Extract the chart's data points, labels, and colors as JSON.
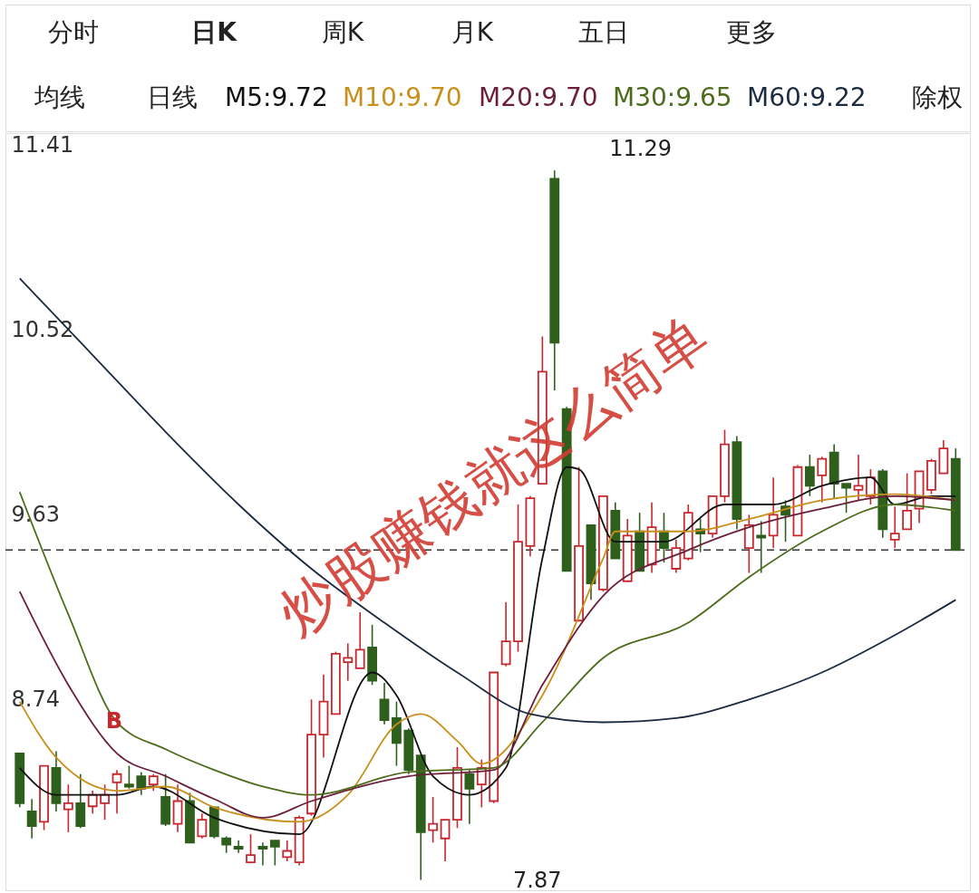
{
  "chart_data": {
    "type": "candlestick",
    "categories": [
      null,
      null,
      null,
      null,
      null,
      null,
      null,
      null,
      null,
      null,
      null,
      null,
      null,
      null,
      null,
      null,
      null,
      null,
      null,
      null,
      null,
      null,
      null,
      null,
      null,
      null,
      null,
      null,
      null,
      null,
      null,
      null,
      null,
      null,
      null,
      null,
      null,
      null,
      null,
      null,
      null,
      null,
      null,
      null,
      null,
      null,
      null,
      null,
      null,
      null,
      null,
      null,
      null,
      null,
      null,
      null,
      null,
      null,
      null,
      null,
      null,
      null,
      null,
      null,
      null,
      null,
      null,
      null,
      null,
      null,
      null,
      null,
      null,
      null,
      null,
      null,
      null,
      null
    ],
    "ohlc": [
      [
        8.48,
        8.48,
        8.22,
        8.24
      ],
      [
        8.2,
        8.26,
        8.07,
        8.13
      ],
      [
        8.15,
        8.42,
        8.11,
        8.42
      ],
      [
        8.41,
        8.49,
        8.2,
        8.24
      ],
      [
        8.21,
        8.33,
        8.1,
        8.24
      ],
      [
        8.24,
        8.38,
        8.12,
        8.13
      ],
      [
        8.225,
        8.3,
        8.19,
        8.28
      ],
      [
        8.24,
        8.33,
        8.16,
        8.28
      ],
      [
        8.34,
        8.4,
        8.19,
        8.38
      ],
      [
        8.33,
        8.42,
        8.31,
        8.32
      ],
      [
        8.37,
        8.39,
        8.28,
        8.31
      ],
      [
        8.33,
        8.38,
        8.3,
        8.37
      ],
      [
        8.27,
        8.38,
        8.13,
        8.14
      ],
      [
        8.14,
        8.33,
        8.1,
        8.25
      ],
      [
        8.25,
        8.29,
        8.05,
        8.05
      ],
      [
        8.08,
        8.19,
        8.07,
        8.16
      ],
      [
        8.22,
        8.22,
        8.07,
        8.08
      ],
      [
        8.07,
        8.08,
        8.0,
        8.04
      ],
      [
        8.03,
        8.06,
        8.0,
        8.02
      ],
      [
        7.955,
        8.09,
        7.95,
        7.99
      ],
      [
        8.03,
        8.05,
        7.94,
        8.02
      ],
      [
        8.06,
        8.06,
        7.94,
        8.03
      ],
      [
        7.98,
        8.06,
        7.96,
        8.01
      ],
      [
        7.955,
        8.18,
        7.94,
        8.17
      ],
      [
        8.19,
        8.74,
        8.18,
        8.57
      ],
      [
        8.57,
        8.86,
        8.46,
        8.73
      ],
      [
        8.67,
        8.97,
        8.67,
        8.96
      ],
      [
        8.92,
        9.01,
        8.83,
        8.94
      ],
      [
        8.89,
        9.16,
        8.89,
        8.98
      ],
      [
        8.99,
        9.1,
        8.81,
        8.83
      ],
      [
        8.74,
        8.82,
        8.62,
        8.64
      ],
      [
        8.65,
        8.73,
        8.42,
        8.53
      ],
      [
        8.59,
        8.6,
        8.38,
        8.4
      ],
      [
        8.47,
        8.47,
        7.87,
        8.1
      ],
      [
        8.11,
        8.27,
        8.05,
        8.14
      ],
      [
        8.07,
        8.16,
        7.96,
        8.16
      ],
      [
        8.16,
        8.51,
        8.12,
        8.41
      ],
      [
        8.38,
        8.4,
        8.14,
        8.31
      ],
      [
        8.33,
        8.45,
        8.22,
        8.41
      ],
      [
        8.25,
        8.87,
        8.24,
        8.87
      ],
      [
        8.91,
        9.21,
        8.9,
        9.02
      ],
      [
        9.02,
        9.68,
        8.97,
        9.5
      ],
      [
        9.48,
        9.72,
        9.43,
        9.71
      ],
      [
        9.78,
        10.49,
        9.78,
        10.32
      ],
      [
        11.25,
        11.29,
        10.23,
        10.46
      ],
      [
        10.14,
        10.15,
        9.36,
        9.36
      ],
      [
        9.12,
        9.86,
        9.12,
        9.48
      ],
      [
        9.58,
        9.58,
        9.22,
        9.3
      ],
      [
        9.27,
        9.72,
        9.26,
        9.72
      ],
      [
        9.65,
        9.69,
        9.42,
        9.42
      ],
      [
        9.31,
        9.61,
        9.31,
        9.53
      ],
      [
        9.55,
        9.64,
        9.36,
        9.36
      ],
      [
        9.39,
        9.69,
        9.35,
        9.57
      ],
      [
        9.55,
        9.64,
        9.4,
        9.47
      ],
      [
        9.37,
        9.51,
        9.35,
        9.47
      ],
      [
        9.42,
        9.68,
        9.41,
        9.64
      ],
      [
        9.56,
        9.61,
        9.45,
        9.54
      ],
      [
        9.54,
        9.72,
        9.52,
        9.72
      ],
      [
        9.72,
        10.04,
        9.69,
        9.97
      ],
      [
        9.98,
        10.01,
        9.56,
        9.61
      ],
      [
        9.47,
        9.63,
        9.35,
        9.58
      ],
      [
        9.53,
        9.6,
        9.35,
        9.52
      ],
      [
        9.53,
        9.81,
        9.47,
        9.63
      ],
      [
        9.67,
        9.7,
        9.5,
        9.63
      ],
      [
        9.53,
        9.87,
        9.53,
        9.86
      ],
      [
        9.86,
        9.92,
        9.72,
        9.77
      ],
      [
        9.82,
        9.91,
        9.69,
        9.9
      ],
      [
        9.93,
        9.97,
        9.71,
        9.78
      ],
      [
        9.78,
        9.78,
        9.64,
        9.76
      ],
      [
        9.75,
        9.92,
        9.7,
        9.77
      ],
      [
        9.72,
        9.85,
        9.68,
        9.81
      ],
      [
        9.84,
        9.85,
        9.52,
        9.56
      ],
      [
        9.51,
        9.67,
        9.47,
        9.54
      ],
      [
        9.56,
        9.83,
        9.56,
        9.65
      ],
      [
        9.66,
        9.84,
        9.59,
        9.84
      ],
      [
        9.75,
        9.9,
        9.73,
        9.89
      ],
      [
        9.83,
        9.99,
        9.83,
        9.95
      ],
      [
        9.9,
        9.95,
        9.46,
        9.46
      ]
    ],
    "series": [
      {
        "name": "M5:9.72",
        "type": "line",
        "color": "#111111",
        "values": [
          8.41,
          null,
          null,
          8.28,
          null,
          null,
          null,
          null,
          8.28,
          null,
          null,
          8.32,
          null,
          null,
          null,
          null,
          8.17,
          null,
          null,
          null,
          null,
          null,
          null,
          8.09,
          null,
          null,
          null,
          null,
          null,
          8.87,
          null,
          8.76,
          null,
          null,
          8.37,
          null,
          null,
          8.28,
          null,
          null,
          8.41,
          null,
          null,
          9.42,
          null,
          9.86,
          9.85,
          null,
          null,
          9.5,
          null,
          null,
          null,
          9.5,
          null,
          null,
          null,
          null,
          9.68,
          null,
          null,
          null,
          9.68,
          null,
          null,
          null,
          9.77,
          null,
          null,
          null,
          9.81,
          null,
          9.68,
          null,
          null,
          9.72,
          null,
          9.72
        ]
      },
      {
        "name": "M10:9.70",
        "type": "line",
        "color": "#c8901a",
        "values": [
          8.73,
          null,
          null,
          8.46,
          null,
          null,
          null,
          null,
          8.3,
          null,
          null,
          null,
          8.32,
          null,
          null,
          null,
          8.22,
          null,
          null,
          null,
          null,
          null,
          null,
          8.15,
          null,
          null,
          null,
          8.28,
          null,
          null,
          null,
          8.62,
          null,
          8.67,
          null,
          null,
          8.54,
          null,
          8.43,
          null,
          null,
          null,
          null,
          8.76,
          null,
          null,
          null,
          null,
          9.42,
          9.55,
          null,
          null,
          null,
          null,
          null,
          9.55,
          null,
          null,
          null,
          null,
          9.61,
          null,
          null,
          null,
          null,
          null,
          9.7,
          null,
          null,
          null,
          null,
          null,
          9.73,
          null,
          null,
          null,
          null,
          9.7
        ]
      },
      {
        "name": "M20:9.70",
        "type": "line",
        "color": "#6b1f3a",
        "values": [
          9.26,
          null,
          null,
          null,
          8.81,
          null,
          null,
          null,
          8.48,
          null,
          null,
          null,
          8.37,
          null,
          null,
          null,
          8.26,
          null,
          null,
          null,
          8.17,
          null,
          null,
          null,
          8.25,
          null,
          null,
          null,
          null,
          null,
          null,
          null,
          8.37,
          null,
          null,
          null,
          null,
          null,
          null,
          8.4,
          null,
          null,
          null,
          8.81,
          null,
          null,
          null,
          null,
          9.24,
          null,
          null,
          null,
          null,
          null,
          null,
          9.46,
          null,
          null,
          null,
          null,
          9.57,
          null,
          null,
          null,
          null,
          null,
          9.66,
          null,
          null,
          null,
          null,
          null,
          9.72,
          null,
          null,
          null,
          null,
          9.7
        ]
      },
      {
        "name": "M30:9.65",
        "type": "line",
        "color": "#4d6b1a",
        "values": [
          9.74,
          null,
          null,
          null,
          9.15,
          null,
          null,
          null,
          8.63,
          null,
          null,
          null,
          8.5,
          null,
          null,
          null,
          8.4,
          null,
          null,
          null,
          8.32,
          null,
          null,
          null,
          8.28,
          null,
          null,
          null,
          null,
          null,
          null,
          null,
          8.39,
          null,
          null,
          null,
          null,
          null,
          null,
          8.41,
          null,
          null,
          null,
          8.63,
          null,
          null,
          null,
          null,
          8.94,
          null,
          null,
          null,
          null,
          null,
          null,
          9.11,
          null,
          null,
          null,
          null,
          9.33,
          null,
          null,
          null,
          null,
          null,
          9.55,
          null,
          null,
          null,
          null,
          null,
          9.68,
          null,
          null,
          null,
          null,
          9.65
        ]
      },
      {
        "name": "M60:9.22",
        "type": "line",
        "color": "#1c2b3f",
        "values": [
          10.77,
          null,
          null,
          null,
          null,
          null,
          10.4,
          null,
          null,
          null,
          null,
          null,
          10.03,
          null,
          null,
          null,
          null,
          null,
          9.68,
          null,
          null,
          null,
          null,
          null,
          9.37,
          null,
          null,
          null,
          null,
          null,
          9.11,
          null,
          null,
          null,
          null,
          null,
          8.87,
          null,
          null,
          null,
          null,
          null,
          8.67,
          null,
          null,
          null,
          null,
          null,
          8.63,
          null,
          null,
          null,
          null,
          null,
          8.65,
          null,
          null,
          null,
          null,
          null,
          8.74,
          null,
          null,
          null,
          null,
          null,
          8.87,
          null,
          null,
          null,
          null,
          null,
          9.05,
          null,
          null,
          null,
          null,
          9.22
        ]
      }
    ],
    "ylim": [
      7.82,
      11.47
    ],
    "yticks": [
      11.41,
      10.52,
      9.63,
      8.74
    ],
    "ref_lines": [
      {
        "axis": "y",
        "value": 9.46,
        "color": "#333333",
        "line_style": "dashed"
      }
    ],
    "legend": "top",
    "annotations": [
      "分时",
      "日K",
      "周K",
      "月K",
      "五日",
      "更多",
      "均线",
      "日线",
      "除权",
      "炒股赚钱就这么简单",
      "11.29",
      "7.87",
      "B"
    ]
  }
}
